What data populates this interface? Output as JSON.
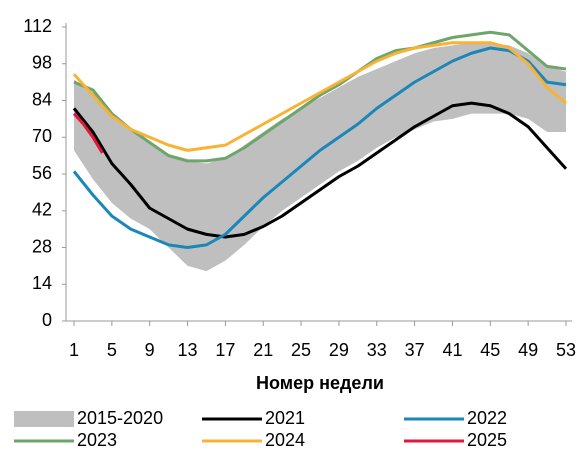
{
  "chart_data": {
    "type": "line",
    "xlabel": "Номер недели",
    "x": [
      1,
      3,
      5,
      7,
      9,
      11,
      13,
      15,
      17,
      19,
      21,
      23,
      25,
      27,
      29,
      31,
      33,
      35,
      37,
      39,
      41,
      43,
      45,
      47,
      49,
      51,
      53
    ],
    "xlim": [
      1,
      53
    ],
    "xticks": [
      1,
      5,
      9,
      13,
      17,
      21,
      25,
      29,
      33,
      37,
      41,
      45,
      49,
      53
    ],
    "ylim": [
      0,
      112
    ],
    "yticks": [
      0,
      14,
      28,
      42,
      56,
      70,
      84,
      98,
      112
    ],
    "grid": false,
    "series": [
      {
        "name": "2015-2020",
        "color": "#bfbfbf",
        "kind": "band",
        "upper": [
          92,
          87,
          79,
          73,
          68,
          63,
          61,
          60,
          62,
          67,
          72,
          77,
          81,
          85,
          89,
          93,
          96,
          99,
          102,
          104,
          105,
          106,
          106,
          105,
          102,
          97,
          95
        ],
        "lower": [
          65,
          54,
          45,
          39,
          35,
          28,
          21,
          19,
          23,
          29,
          36,
          42,
          47,
          52,
          57,
          61,
          66,
          70,
          73,
          76,
          77,
          79,
          79,
          79,
          77,
          72,
          72
        ]
      },
      {
        "name": "2021",
        "color": "#000000",
        "values": [
          81,
          72,
          60,
          52,
          43,
          39,
          35,
          33,
          32,
          33,
          36,
          40,
          45,
          50,
          55,
          59,
          64,
          69,
          74,
          78,
          82,
          83,
          82,
          79,
          74,
          66,
          58
        ]
      },
      {
        "name": "2022",
        "color": "#1a87b8",
        "values": [
          57,
          48,
          40,
          35,
          32,
          29,
          28,
          29,
          33,
          40,
          47,
          53,
          59,
          65,
          70,
          75,
          81,
          86,
          91,
          95,
          99,
          102,
          104,
          103,
          99,
          91,
          90
        ]
      },
      {
        "name": "2023",
        "color": "#6ea56b",
        "values": [
          91,
          88,
          79,
          73,
          68,
          63,
          61,
          61,
          62,
          66,
          71,
          76,
          81,
          86,
          90,
          95,
          100,
          103,
          104,
          106,
          108,
          109,
          110,
          109,
          103,
          97,
          96
        ]
      },
      {
        "name": "2024",
        "color": "#f9b233",
        "values": [
          94,
          86,
          78,
          73,
          70,
          67,
          65,
          66,
          67,
          71,
          75,
          79,
          83,
          87,
          91,
          95,
          99,
          102,
          104,
          105,
          106,
          106,
          106,
          104,
          98,
          89,
          83
        ]
      },
      {
        "name": "2025",
        "color": "#e3173d",
        "x": [
          1,
          2,
          3,
          4
        ],
        "values": [
          79,
          75,
          70,
          64
        ]
      }
    ]
  }
}
